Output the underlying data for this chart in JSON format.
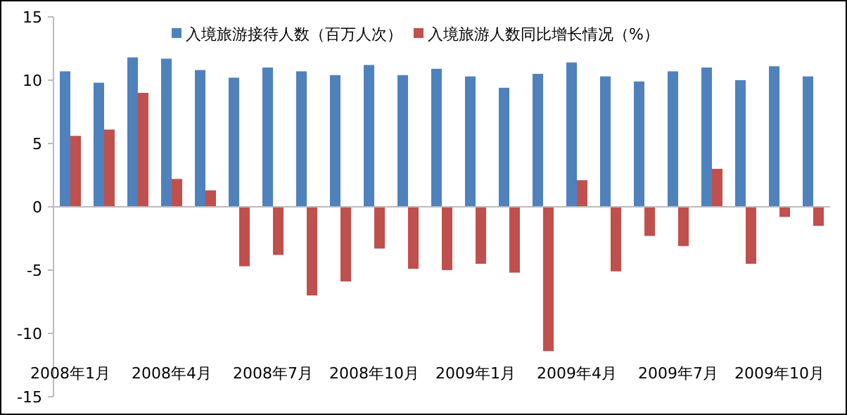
{
  "chart_data": {
    "type": "bar",
    "categories": [
      "2008年1月",
      null,
      null,
      "2008年4月",
      null,
      null,
      "2008年7月",
      null,
      null,
      "2008年10月",
      null,
      null,
      "2009年1月",
      null,
      null,
      "2009年4月",
      null,
      null,
      "2009年7月",
      null,
      null,
      "2009年10月",
      null
    ],
    "series": [
      {
        "name": "入境旅游接待人数（百万人次）",
        "color": "#4f81bd",
        "values": [
          10.7,
          9.8,
          11.8,
          11.7,
          10.8,
          10.2,
          11.0,
          10.7,
          10.4,
          11.2,
          10.4,
          10.9,
          10.3,
          9.4,
          10.5,
          11.4,
          10.3,
          9.9,
          10.7,
          11.0,
          10.0,
          11.1,
          10.3
        ]
      },
      {
        "name": "入境旅游人数同比增长情况（%）",
        "color": "#c0504d",
        "values": [
          5.6,
          6.1,
          9.0,
          2.2,
          1.3,
          -4.7,
          -3.8,
          -7.0,
          -5.9,
          -3.3,
          -4.9,
          -5.0,
          -4.5,
          -5.2,
          -11.4,
          2.1,
          -5.1,
          -2.3,
          -3.1,
          3.0,
          -4.5,
          -0.8,
          -1.5
        ]
      }
    ],
    "ylim": [
      -15,
      15
    ],
    "yticks": [
      -15,
      -10,
      -5,
      0,
      5,
      10,
      15
    ],
    "legend": "top"
  }
}
